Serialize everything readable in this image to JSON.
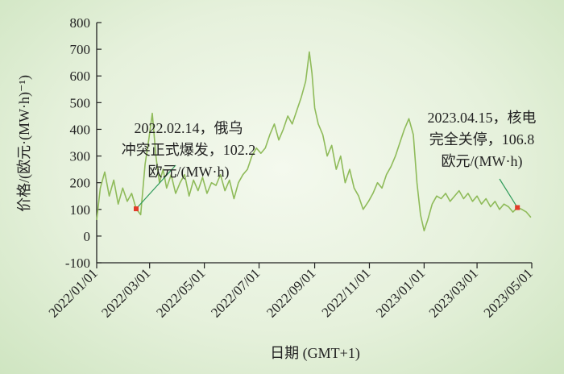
{
  "chart_data": {
    "type": "line",
    "title": "",
    "xlabel": "日期 (GMT+1)",
    "ylabel": "价格/(欧元·(MW·h)⁻¹)",
    "x_ticks": [
      "2022/01/01",
      "2022/03/01",
      "2022/05/01",
      "2022/07/01",
      "2022/09/01",
      "2022/11/01",
      "2023/01/01",
      "2023/03/01",
      "2023/05/01"
    ],
    "y_ticks": [
      800,
      700,
      600,
      500,
      400,
      300,
      200,
      100,
      0,
      -100
    ],
    "ylim": [
      -100,
      800
    ],
    "xlim": [
      "2022/01/01",
      "2023/05/01"
    ],
    "grid": false,
    "line_color": "#8fbb5a",
    "marker_color": "#e23b2a",
    "series": [
      {
        "values": [
          [
            "2022-01-01",
            60
          ],
          [
            "2022-01-05",
            180
          ],
          [
            "2022-01-10",
            240
          ],
          [
            "2022-01-15",
            150
          ],
          [
            "2022-01-20",
            210
          ],
          [
            "2022-01-25",
            120
          ],
          [
            "2022-01-30",
            180
          ],
          [
            "2022-02-04",
            130
          ],
          [
            "2022-02-09",
            160
          ],
          [
            "2022-02-14",
            102.2
          ],
          [
            "2022-02-19",
            80
          ],
          [
            "2022-02-24",
            270
          ],
          [
            "2022-02-28",
            360
          ],
          [
            "2022-03-04",
            460
          ],
          [
            "2022-03-08",
            300
          ],
          [
            "2022-03-12",
            200
          ],
          [
            "2022-03-16",
            250
          ],
          [
            "2022-03-20",
            180
          ],
          [
            "2022-03-25",
            230
          ],
          [
            "2022-03-30",
            160
          ],
          [
            "2022-04-04",
            200
          ],
          [
            "2022-04-09",
            230
          ],
          [
            "2022-04-14",
            150
          ],
          [
            "2022-04-19",
            210
          ],
          [
            "2022-04-24",
            170
          ],
          [
            "2022-04-29",
            220
          ],
          [
            "2022-05-04",
            160
          ],
          [
            "2022-05-09",
            200
          ],
          [
            "2022-05-14",
            190
          ],
          [
            "2022-05-19",
            230
          ],
          [
            "2022-05-24",
            170
          ],
          [
            "2022-05-29",
            210
          ],
          [
            "2022-06-03",
            140
          ],
          [
            "2022-06-08",
            200
          ],
          [
            "2022-06-13",
            230
          ],
          [
            "2022-06-18",
            250
          ],
          [
            "2022-06-23",
            300
          ],
          [
            "2022-06-28",
            330
          ],
          [
            "2022-07-03",
            310
          ],
          [
            "2022-07-08",
            330
          ],
          [
            "2022-07-13",
            380
          ],
          [
            "2022-07-18",
            420
          ],
          [
            "2022-07-23",
            360
          ],
          [
            "2022-07-28",
            400
          ],
          [
            "2022-08-02",
            450
          ],
          [
            "2022-08-07",
            420
          ],
          [
            "2022-08-12",
            470
          ],
          [
            "2022-08-17",
            520
          ],
          [
            "2022-08-22",
            580
          ],
          [
            "2022-08-26",
            690
          ],
          [
            "2022-08-29",
            610
          ],
          [
            "2022-09-01",
            480
          ],
          [
            "2022-09-05",
            420
          ],
          [
            "2022-09-10",
            380
          ],
          [
            "2022-09-15",
            300
          ],
          [
            "2022-09-20",
            340
          ],
          [
            "2022-09-25",
            250
          ],
          [
            "2022-09-30",
            300
          ],
          [
            "2022-10-05",
            200
          ],
          [
            "2022-10-10",
            250
          ],
          [
            "2022-10-15",
            180
          ],
          [
            "2022-10-20",
            150
          ],
          [
            "2022-10-25",
            100
          ],
          [
            "2022-10-31",
            130
          ],
          [
            "2022-11-05",
            160
          ],
          [
            "2022-11-10",
            200
          ],
          [
            "2022-11-15",
            180
          ],
          [
            "2022-11-20",
            230
          ],
          [
            "2022-11-25",
            260
          ],
          [
            "2022-11-30",
            300
          ],
          [
            "2022-12-05",
            350
          ],
          [
            "2022-12-10",
            400
          ],
          [
            "2022-12-15",
            440
          ],
          [
            "2022-12-20",
            380
          ],
          [
            "2022-12-24",
            200
          ],
          [
            "2022-12-28",
            80
          ],
          [
            "2023-01-01",
            20
          ],
          [
            "2023-01-05",
            60
          ],
          [
            "2023-01-10",
            120
          ],
          [
            "2023-01-15",
            150
          ],
          [
            "2023-01-20",
            140
          ],
          [
            "2023-01-25",
            160
          ],
          [
            "2023-01-30",
            130
          ],
          [
            "2023-02-04",
            150
          ],
          [
            "2023-02-09",
            170
          ],
          [
            "2023-02-14",
            140
          ],
          [
            "2023-02-19",
            160
          ],
          [
            "2023-02-24",
            130
          ],
          [
            "2023-03-01",
            150
          ],
          [
            "2023-03-06",
            120
          ],
          [
            "2023-03-11",
            140
          ],
          [
            "2023-03-16",
            110
          ],
          [
            "2023-03-21",
            130
          ],
          [
            "2023-03-26",
            100
          ],
          [
            "2023-03-31",
            120
          ],
          [
            "2023-04-05",
            110
          ],
          [
            "2023-04-10",
            90
          ],
          [
            "2023-04-15",
            106.8
          ],
          [
            "2023-04-20",
            100
          ],
          [
            "2023-04-25",
            90
          ],
          [
            "2023-04-30",
            70
          ]
        ]
      }
    ],
    "markers": [
      {
        "date": "2022-02-14",
        "value": 102.2
      },
      {
        "date": "2023-04-15",
        "value": 106.8
      }
    ],
    "annotations": [
      {
        "date": "2022-02-14",
        "lines": [
          "2022.02.14，俄乌",
          "冲突正式爆发，102.2",
          "欧元/(MW·h)"
        ]
      },
      {
        "date": "2023-04-15",
        "lines": [
          "2023.04.15，核电",
          "完全关停，106.8",
          "欧元/(MW·h)"
        ]
      }
    ]
  }
}
